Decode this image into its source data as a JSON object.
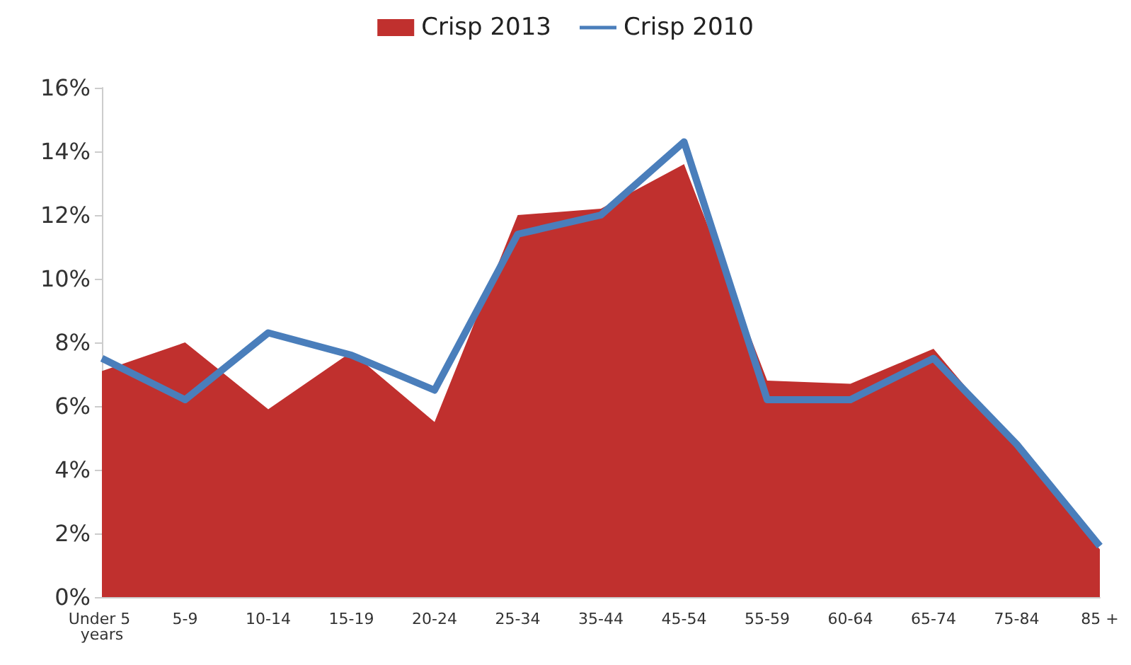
{
  "chart_data": {
    "type": "area",
    "categories": [
      "Under 5 years",
      "5-9",
      "10-14",
      "15-19",
      "20-24",
      "25-34",
      "35-44",
      "45-54",
      "55-59",
      "60-64",
      "65-74",
      "75-84",
      "85 +"
    ],
    "series": [
      {
        "name": "Crisp 2013",
        "color": "#c0302e",
        "values": [
          7.1,
          8.0,
          5.9,
          7.7,
          5.5,
          12.0,
          12.2,
          13.6,
          6.8,
          6.7,
          7.8,
          4.7,
          1.5
        ]
      },
      {
        "name": "Crisp 2010",
        "type": "line",
        "color": "#4a7ebb",
        "values": [
          7.5,
          6.2,
          8.3,
          7.6,
          6.5,
          11.4,
          12.0,
          14.3,
          6.2,
          6.2,
          7.5,
          4.8,
          1.6
        ]
      }
    ],
    "ylim": [
      0,
      16
    ],
    "yticks": [
      {
        "value": 0,
        "label": "0%"
      },
      {
        "value": 2,
        "label": "2%"
      },
      {
        "value": 4,
        "label": "4%"
      },
      {
        "value": 6,
        "label": "6%"
      },
      {
        "value": 8,
        "label": "8%"
      },
      {
        "value": 10,
        "label": "10%"
      },
      {
        "value": 12,
        "label": "12%"
      },
      {
        "value": 14,
        "label": "14%"
      },
      {
        "value": 16,
        "label": "16%"
      }
    ],
    "grid": false,
    "legend": "top",
    "marker": "none"
  }
}
